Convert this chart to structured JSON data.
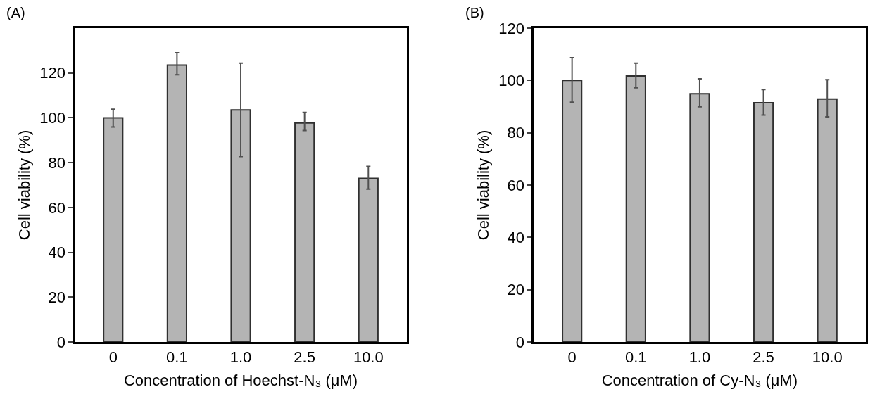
{
  "chart_data": [
    {
      "type": "bar",
      "annotations": [
        "(A)"
      ],
      "xlabel": "Concentration of Hoechst-N₃ (μM)",
      "ylabel": "Cell viability (%)",
      "categories": [
        "0",
        "0.1",
        "1.0",
        "2.5",
        "10.0"
      ],
      "values": [
        100,
        123.5,
        103.5,
        97.7,
        73
      ],
      "errors": [
        [
          95.9,
          103.8
        ],
        [
          119.2,
          129
        ],
        [
          82.7,
          124.4
        ],
        [
          94.3,
          102.4
        ],
        [
          68.2,
          78.3
        ]
      ],
      "color": "#b4b4b4",
      "ylim": [
        0,
        140
      ],
      "yticks": [
        0,
        20,
        40,
        60,
        80,
        100,
        120
      ]
    },
    {
      "type": "bar",
      "annotations": [
        "(B)"
      ],
      "xlabel": "Concentration of Cy-N₃ (μM)",
      "ylabel": "Cell viability (%)",
      "categories": [
        "0",
        "0.1",
        "1.0",
        "2.5",
        "10.0"
      ],
      "values": [
        100,
        101.7,
        94.9,
        91.5,
        92.9
      ],
      "errors": [
        [
          91.7,
          108.7
        ],
        [
          97.2,
          106.6
        ],
        [
          89.9,
          100.6
        ],
        [
          86.8,
          96.5
        ],
        [
          86.1,
          100.3
        ]
      ],
      "color": "#b4b4b4",
      "ylim": [
        0,
        120
      ],
      "yticks": [
        0,
        20,
        40,
        60,
        80,
        100,
        120
      ]
    }
  ]
}
